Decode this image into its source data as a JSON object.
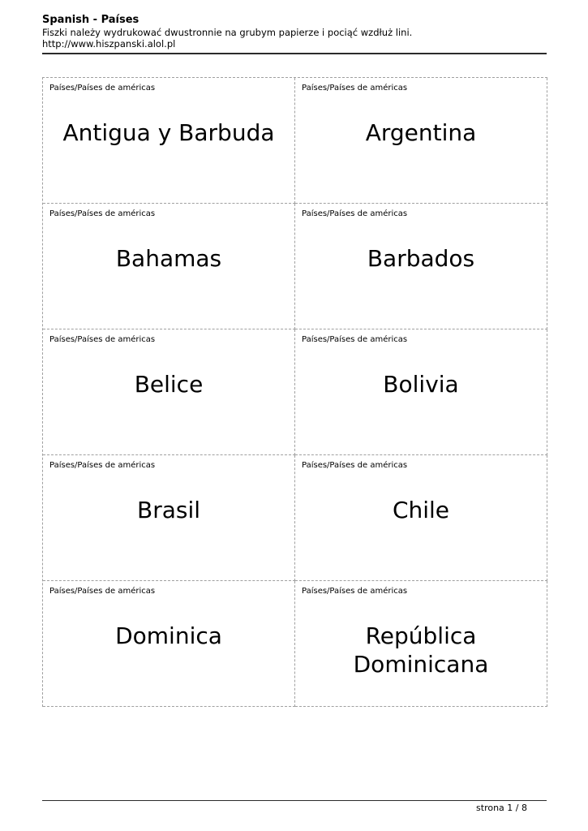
{
  "header": {
    "title": "Spanish - Países",
    "instructions": "Fiszki należy wydrukować dwustronnie na grubym papierze i pociąć wzdłuż lini.",
    "url": "http://www.hiszpanski.alol.pl"
  },
  "cards": [
    {
      "category": "Países/Países de américas",
      "term": "Antigua y Barbuda"
    },
    {
      "category": "Países/Países de américas",
      "term": "Argentina"
    },
    {
      "category": "Países/Países de américas",
      "term": "Bahamas"
    },
    {
      "category": "Países/Países de américas",
      "term": "Barbados"
    },
    {
      "category": "Países/Países de américas",
      "term": "Belice"
    },
    {
      "category": "Países/Países de américas",
      "term": "Bolivia"
    },
    {
      "category": "Países/Países de américas",
      "term": "Brasil"
    },
    {
      "category": "Países/Países de américas",
      "term": "Chile"
    },
    {
      "category": "Países/Países de américas",
      "term": "Dominica"
    },
    {
      "category": "Países/Países de américas",
      "term": "República Dominicana"
    }
  ],
  "footer": {
    "page_label": "strona 1 / 8"
  },
  "colors": {
    "text": "#000000",
    "dashed_border": "#a0a0a0",
    "rule": "#2b2b2b",
    "background": "#ffffff"
  }
}
